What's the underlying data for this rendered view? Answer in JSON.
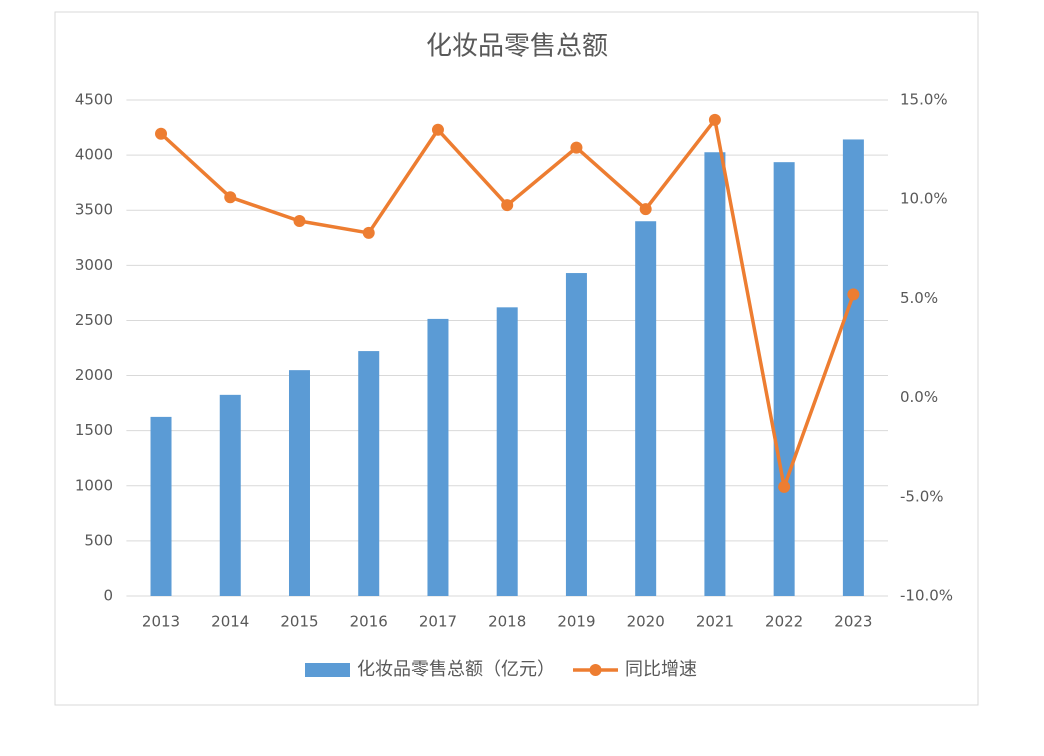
{
  "chart_data": {
    "type": "bar-line",
    "title": "化妆品零售总额",
    "categories": [
      "2013",
      "2014",
      "2015",
      "2016",
      "2017",
      "2018",
      "2019",
      "2020",
      "2021",
      "2022",
      "2023"
    ],
    "series": [
      {
        "name": "化妆品零售总额（亿元）",
        "type": "bar",
        "color": "#5b9bd5",
        "axis": "y",
        "values": [
          1625,
          1825,
          2049,
          2222,
          2514,
          2619,
          2930,
          3400,
          4026,
          3936,
          4142
        ]
      },
      {
        "name": "同比增速",
        "type": "line",
        "color": "#ed7d31",
        "axis": "y2",
        "values": [
          13.3,
          10.1,
          8.9,
          8.3,
          13.5,
          9.7,
          12.6,
          9.5,
          14.0,
          -4.5,
          5.2
        ]
      }
    ],
    "ylim": [
      0,
      4500
    ],
    "yticks": [
      0,
      500,
      1000,
      1500,
      2000,
      2500,
      3000,
      3500,
      4000,
      4500
    ],
    "y2lim": [
      -10,
      15
    ],
    "y2ticks": [
      {
        "value": -10,
        "label": "-10.0%"
      },
      {
        "value": -5,
        "label": "-5.0%"
      },
      {
        "value": 0,
        "label": "0.0%"
      },
      {
        "value": 5,
        "label": "5.0%"
      },
      {
        "value": 10,
        "label": "10.0%"
      },
      {
        "value": 15,
        "label": "15.0%"
      }
    ],
    "grid": true,
    "legend": "bottom"
  }
}
